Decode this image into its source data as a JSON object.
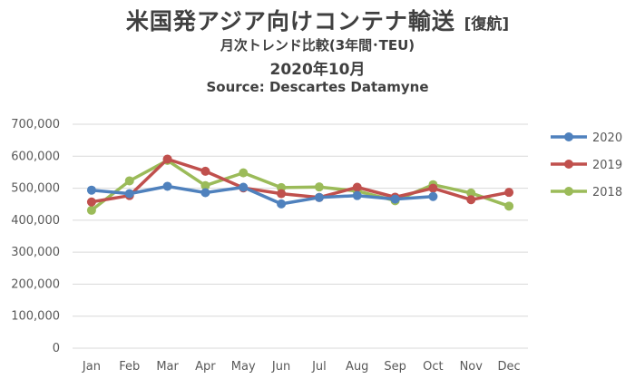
{
  "header": {
    "title": "米国発アジア向けコンテナ輸送",
    "title_suffix": "[復航]",
    "subtitle": "月次トレンド比較(3年間･TEU)",
    "period": "2020年10月",
    "source": "Source: Descartes Datamyne"
  },
  "chart_data": {
    "type": "line",
    "categories": [
      "Jan",
      "Feb",
      "Mar",
      "Apr",
      "May",
      "Jun",
      "Jul",
      "Aug",
      "Sep",
      "Oct",
      "Nov",
      "Dec"
    ],
    "series": [
      {
        "name": "2020",
        "color": "#4F81BD",
        "values": [
          494000,
          483000,
          506000,
          486000,
          503000,
          451000,
          471000,
          477000,
          466000,
          474000,
          null,
          null
        ]
      },
      {
        "name": "2019",
        "color": "#C0504D",
        "values": [
          457000,
          477000,
          591000,
          553000,
          501000,
          483000,
          471000,
          503000,
          472000,
          500000,
          464000,
          487000
        ]
      },
      {
        "name": "2018",
        "color": "#9BBB59",
        "values": [
          431000,
          523000,
          587000,
          508000,
          548000,
          502000,
          504000,
          491000,
          461000,
          511000,
          485000,
          444000
        ]
      }
    ],
    "ylim": [
      0,
      700000
    ],
    "yticks": [
      0,
      100000,
      200000,
      300000,
      400000,
      500000,
      600000,
      700000
    ],
    "ytick_labels": [
      "0",
      "100,000",
      "200,000",
      "300,000",
      "400,000",
      "500,000",
      "600,000",
      "700,000"
    ],
    "grid": true,
    "legend_position": "right"
  }
}
